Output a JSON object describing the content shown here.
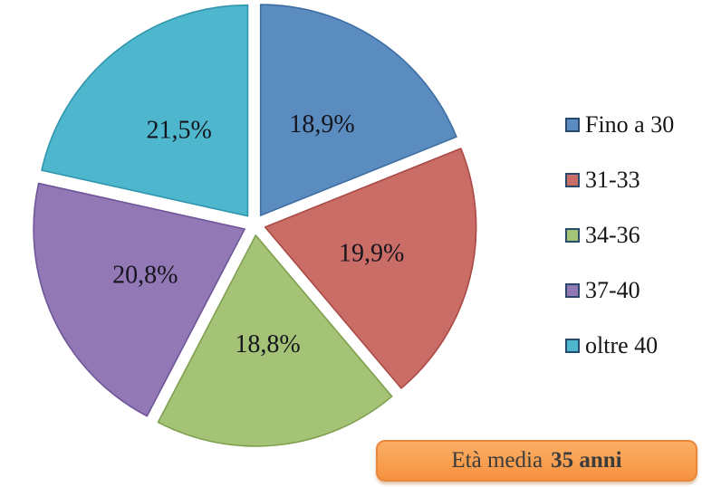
{
  "chart_data": {
    "type": "pie",
    "title": "",
    "legend_position": "right",
    "start_angle_deg": 0,
    "direction": "clockwise",
    "exploded": true,
    "value_unit": "%",
    "decimal_separator": ",",
    "slices": [
      {
        "label": "Fino a 30",
        "value": 18.9,
        "display": "18,9%",
        "color": "#5B8CC0",
        "border_color": "#3D6DA3"
      },
      {
        "label": "31-33",
        "value": 19.9,
        "display": "19,9%",
        "color": "#CB6D67",
        "border_color": "#A94A45"
      },
      {
        "label": "34-36",
        "value": 18.8,
        "display": "18,8%",
        "color": "#A5C376",
        "border_color": "#7FA04F"
      },
      {
        "label": "37-40",
        "value": 20.8,
        "display": "20,8%",
        "color": "#9278B5",
        "border_color": "#6F5699"
      },
      {
        "label": "oltre 40",
        "value": 21.5,
        "display": "21,5%",
        "color": "#4EB7CD",
        "border_color": "#2F95AD"
      }
    ],
    "legend_swatch_border_color": "#2B4A6B",
    "label_text_color": "#15151d"
  },
  "badge": {
    "prefix": "Età media",
    "bold": "35 anni",
    "fill_top": "#FBAF64",
    "fill_bottom": "#F69240",
    "border_color": "#E9873B",
    "text_color": "#3c3c3c"
  }
}
